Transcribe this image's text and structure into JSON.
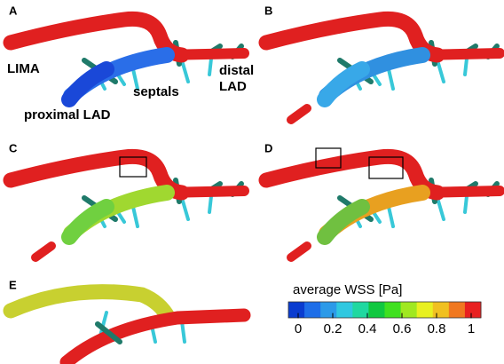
{
  "panels": [
    {
      "label": "A"
    },
    {
      "label": "B"
    },
    {
      "label": "C"
    },
    {
      "label": "D"
    },
    {
      "label": "E"
    }
  ],
  "annotations": {
    "lima": "LIMA",
    "septals": "septals",
    "distal_lad": [
      "distal",
      "LAD"
    ],
    "proximal_lad": "proximal LAD"
  },
  "colorbar": {
    "title": "average WSS [Pa]",
    "lim": [
      0,
      1
    ],
    "ticks": [
      0,
      0.2,
      0.4,
      0.6,
      0.8,
      1
    ],
    "colors": [
      "#0a3cd0",
      "#1e6ee8",
      "#2c9ae8",
      "#30c8e0",
      "#20d8a0",
      "#10c840",
      "#40e020",
      "#a0e820",
      "#e8f020",
      "#f0c020",
      "#f07820",
      "#e82020"
    ]
  }
}
